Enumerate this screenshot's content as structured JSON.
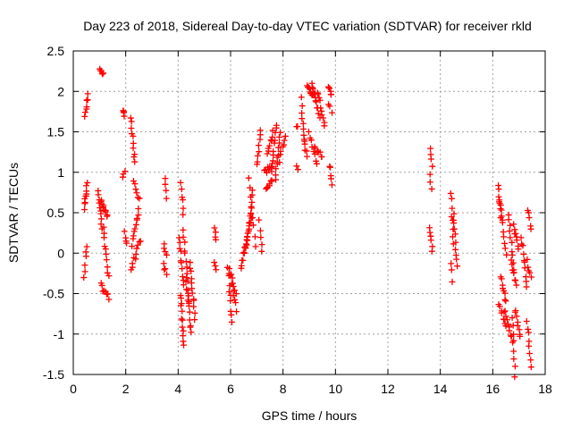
{
  "chart_data": {
    "type": "scatter",
    "title": "Day 223 of 2018, Sidereal Day-to-day VTEC variation (SDTVAR) for receiver rkld",
    "xlabel": "GPS time / hours",
    "ylabel": "SDTVAR / TECUs",
    "xlim": [
      0,
      18
    ],
    "ylim": [
      -1.5,
      2.5
    ],
    "xticks": [
      0,
      2,
      4,
      6,
      8,
      10,
      12,
      14,
      16,
      18
    ],
    "xtick_labels": [
      "0",
      "2",
      "4",
      "6",
      "8",
      "10",
      "12",
      "14",
      "16",
      "18"
    ],
    "yticks": [
      -1.5,
      -1,
      -0.5,
      0,
      0.5,
      1,
      1.5,
      2,
      2.5
    ],
    "ytick_labels": [
      "-1.5",
      "-1",
      "-0.5",
      "0",
      "0.5",
      "1",
      "1.5",
      "2",
      "2.5"
    ],
    "grid": true,
    "marker": "+",
    "color": "#ff0000",
    "segments": [
      {
        "x0": 0.42,
        "y0": 0.55,
        "x1": 0.52,
        "y1": 0.85,
        "n": 10
      },
      {
        "x0": 0.42,
        "y0": -0.3,
        "x1": 0.5,
        "y1": 0.1,
        "n": 6
      },
      {
        "x0": 0.45,
        "y0": 1.7,
        "x1": 0.55,
        "y1": 1.95,
        "n": 7
      },
      {
        "x0": 1.0,
        "y0": 2.3,
        "x1": 1.15,
        "y1": 2.2,
        "n": 6
      },
      {
        "x0": 0.95,
        "y0": 0.8,
        "x1": 1.1,
        "y1": 0.3,
        "n": 10
      },
      {
        "x0": 1.05,
        "y0": 0.65,
        "x1": 1.3,
        "y1": 0.45,
        "n": 10
      },
      {
        "x0": 1.15,
        "y0": 0.3,
        "x1": 1.35,
        "y1": -0.3,
        "n": 10
      },
      {
        "x0": 1.05,
        "y0": -0.4,
        "x1": 1.35,
        "y1": -0.55,
        "n": 8
      },
      {
        "x0": 1.9,
        "y0": 1.78,
        "x1": 1.95,
        "y1": 1.7,
        "n": 4
      },
      {
        "x0": 1.9,
        "y0": 0.95,
        "x1": 1.95,
        "y1": 1.0,
        "n": 3
      },
      {
        "x0": 1.95,
        "y0": 0.25,
        "x1": 2.05,
        "y1": 0.1,
        "n": 4
      },
      {
        "x0": 2.2,
        "y0": 1.7,
        "x1": 2.35,
        "y1": 1.1,
        "n": 10
      },
      {
        "x0": 2.25,
        "y0": 0.1,
        "x1": 2.5,
        "y1": 0.55,
        "n": 10
      },
      {
        "x0": 2.3,
        "y0": 0.9,
        "x1": 2.5,
        "y1": 0.65,
        "n": 6
      },
      {
        "x0": 2.2,
        "y0": -0.2,
        "x1": 2.55,
        "y1": 0.15,
        "n": 10
      },
      {
        "x0": 3.5,
        "y0": 0.9,
        "x1": 3.55,
        "y1": 0.7,
        "n": 4
      },
      {
        "x0": 3.45,
        "y0": 0.1,
        "x1": 3.55,
        "y1": -0.05,
        "n": 4
      },
      {
        "x0": 3.45,
        "y0": -0.15,
        "x1": 3.55,
        "y1": -0.25,
        "n": 4
      },
      {
        "x0": 4.1,
        "y0": 0.85,
        "x1": 4.2,
        "y1": 0.5,
        "n": 6
      },
      {
        "x0": 4.05,
        "y0": 0.2,
        "x1": 4.2,
        "y1": -0.4,
        "n": 10
      },
      {
        "x0": 4.1,
        "y0": -0.5,
        "x1": 4.2,
        "y1": -1.15,
        "n": 12
      },
      {
        "x0": 4.2,
        "y0": 0.3,
        "x1": 4.4,
        "y1": -0.6,
        "n": 12
      },
      {
        "x0": 4.3,
        "y0": -0.3,
        "x1": 4.5,
        "y1": -1.0,
        "n": 12
      },
      {
        "x0": 4.45,
        "y0": -0.1,
        "x1": 4.65,
        "y1": -0.8,
        "n": 12
      },
      {
        "x0": 5.4,
        "y0": 0.3,
        "x1": 5.45,
        "y1": 0.15,
        "n": 4
      },
      {
        "x0": 5.4,
        "y0": -0.1,
        "x1": 5.45,
        "y1": -0.2,
        "n": 3
      },
      {
        "x0": 5.9,
        "y0": -0.15,
        "x1": 6.05,
        "y1": -0.85,
        "n": 10
      },
      {
        "x0": 5.95,
        "y0": -0.2,
        "x1": 6.2,
        "y1": -0.5,
        "n": 8
      },
      {
        "x0": 6.05,
        "y0": -0.4,
        "x1": 6.2,
        "y1": -0.7,
        "n": 6
      },
      {
        "x0": 6.4,
        "y0": -0.2,
        "x1": 6.7,
        "y1": 0.3,
        "n": 12
      },
      {
        "x0": 6.5,
        "y0": 0.0,
        "x1": 6.8,
        "y1": 0.5,
        "n": 12
      },
      {
        "x0": 6.7,
        "y0": 0.3,
        "x1": 6.85,
        "y1": 0.8,
        "n": 8
      },
      {
        "x0": 6.7,
        "y0": 0.9,
        "x1": 6.95,
        "y1": 0.1,
        "n": 8
      },
      {
        "x0": 7.0,
        "y0": 1.1,
        "x1": 7.15,
        "y1": 1.5,
        "n": 8
      },
      {
        "x0": 7.1,
        "y0": 0.4,
        "x1": 7.2,
        "y1": 0.0,
        "n": 5
      },
      {
        "x0": 7.3,
        "y0": 1.0,
        "x1": 7.6,
        "y1": 1.1,
        "n": 10
      },
      {
        "x0": 7.35,
        "y0": 0.8,
        "x1": 7.6,
        "y1": 0.9,
        "n": 8
      },
      {
        "x0": 7.4,
        "y0": 1.2,
        "x1": 7.6,
        "y1": 1.5,
        "n": 8
      },
      {
        "x0": 7.55,
        "y0": 1.0,
        "x1": 7.75,
        "y1": 1.6,
        "n": 10
      },
      {
        "x0": 7.7,
        "y0": 0.9,
        "x1": 7.9,
        "y1": 1.5,
        "n": 10
      },
      {
        "x0": 7.8,
        "y0": 1.1,
        "x1": 8.1,
        "y1": 1.45,
        "n": 8
      },
      {
        "x0": 8.5,
        "y0": 1.1,
        "x1": 8.55,
        "y1": 1.05,
        "n": 2
      },
      {
        "x0": 8.5,
        "y0": 1.55,
        "x1": 8.55,
        "y1": 1.55,
        "n": 2
      },
      {
        "x0": 8.7,
        "y0": 1.9,
        "x1": 8.8,
        "y1": 1.4,
        "n": 8
      },
      {
        "x0": 8.8,
        "y0": 1.4,
        "x1": 8.9,
        "y1": 1.2,
        "n": 5
      },
      {
        "x0": 8.9,
        "y0": 2.05,
        "x1": 9.2,
        "y1": 1.95,
        "n": 10
      },
      {
        "x0": 9.0,
        "y0": 1.5,
        "x1": 9.3,
        "y1": 1.1,
        "n": 8
      },
      {
        "x0": 9.1,
        "y0": 2.1,
        "x1": 9.4,
        "y1": 1.7,
        "n": 12
      },
      {
        "x0": 9.2,
        "y0": 1.3,
        "x1": 9.5,
        "y1": 1.2,
        "n": 8
      },
      {
        "x0": 9.3,
        "y0": 2.0,
        "x1": 9.6,
        "y1": 1.6,
        "n": 10
      },
      {
        "x0": 9.75,
        "y0": 2.05,
        "x1": 9.85,
        "y1": 1.95,
        "n": 5
      },
      {
        "x0": 9.75,
        "y0": 1.85,
        "x1": 9.85,
        "y1": 1.75,
        "n": 3
      },
      {
        "x0": 9.8,
        "y0": 1.1,
        "x1": 9.85,
        "y1": 0.85,
        "n": 5
      },
      {
        "x0": 13.6,
        "y0": 1.3,
        "x1": 13.7,
        "y1": 1.1,
        "n": 4
      },
      {
        "x0": 13.6,
        "y0": 0.95,
        "x1": 13.65,
        "y1": 0.8,
        "n": 3
      },
      {
        "x0": 13.6,
        "y0": 0.3,
        "x1": 13.7,
        "y1": 0.05,
        "n": 6
      },
      {
        "x0": 14.4,
        "y0": 0.75,
        "x1": 14.5,
        "y1": 0.1,
        "n": 8
      },
      {
        "x0": 14.4,
        "y0": -0.1,
        "x1": 14.45,
        "y1": -0.35,
        "n": 3
      },
      {
        "x0": 14.5,
        "y0": 0.5,
        "x1": 14.65,
        "y1": -0.15,
        "n": 10
      },
      {
        "x0": 16.2,
        "y0": 0.85,
        "x1": 16.35,
        "y1": 0.4,
        "n": 8
      },
      {
        "x0": 16.25,
        "y0": 0.65,
        "x1": 16.5,
        "y1": 0.0,
        "n": 10
      },
      {
        "x0": 16.3,
        "y0": -0.3,
        "x1": 16.5,
        "y1": -0.6,
        "n": 8
      },
      {
        "x0": 16.25,
        "y0": -0.65,
        "x1": 16.5,
        "y1": -0.9,
        "n": 8
      },
      {
        "x0": 16.45,
        "y0": -0.7,
        "x1": 16.75,
        "y1": -1.1,
        "n": 10
      },
      {
        "x0": 16.6,
        "y0": 0.5,
        "x1": 16.8,
        "y1": -0.2,
        "n": 10
      },
      {
        "x0": 16.7,
        "y0": -0.1,
        "x1": 16.9,
        "y1": -0.4,
        "n": 8
      },
      {
        "x0": 16.75,
        "y0": -0.8,
        "x1": 16.85,
        "y1": -1.5,
        "n": 8
      },
      {
        "x0": 16.85,
        "y0": -0.7,
        "x1": 17.05,
        "y1": -1.05,
        "n": 8
      },
      {
        "x0": 16.8,
        "y0": 0.35,
        "x1": 17.0,
        "y1": 0.05,
        "n": 8
      },
      {
        "x0": 17.1,
        "y0": 0.2,
        "x1": 17.3,
        "y1": -0.4,
        "n": 10
      },
      {
        "x0": 17.3,
        "y0": -0.85,
        "x1": 17.45,
        "y1": -1.4,
        "n": 8
      },
      {
        "x0": 17.35,
        "y0": 0.55,
        "x1": 17.45,
        "y1": 0.3,
        "n": 5
      },
      {
        "x0": 17.3,
        "y0": -0.1,
        "x1": 17.45,
        "y1": -0.3,
        "n": 5
      }
    ]
  }
}
